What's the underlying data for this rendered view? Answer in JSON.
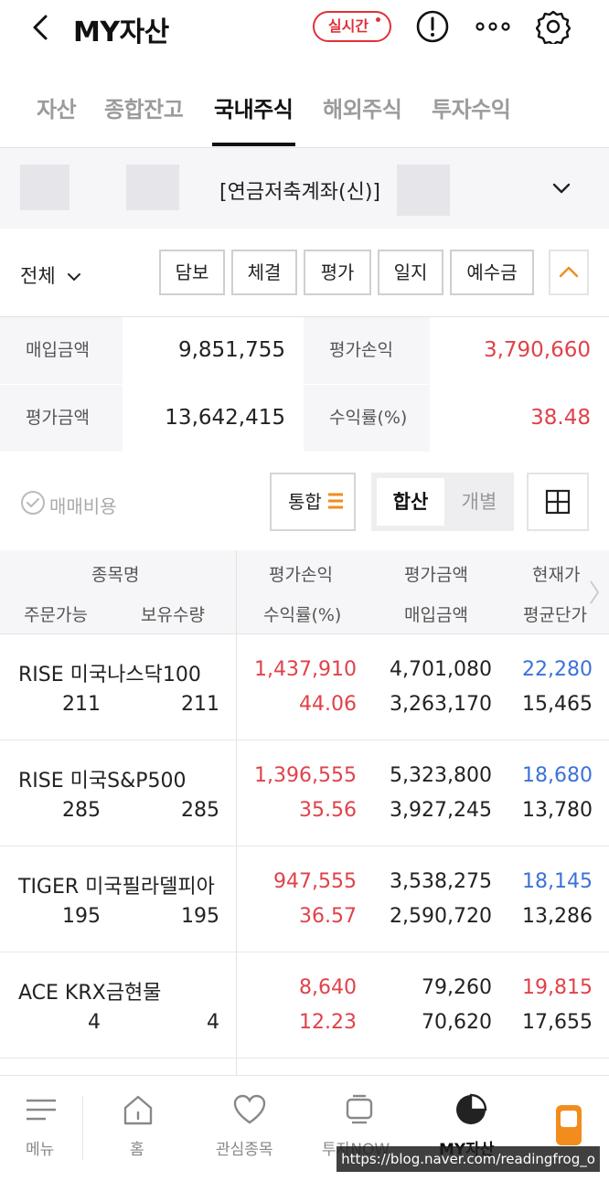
{
  "header": {
    "title": "MY자산",
    "realtime_badge": "실시간",
    "icons": [
      "back-icon",
      "alert-icon",
      "more-icon",
      "settings-icon"
    ]
  },
  "tabs": [
    {
      "label": "자산",
      "active": false
    },
    {
      "label": "종합잔고",
      "active": false
    },
    {
      "label": "국내주식",
      "active": true
    },
    {
      "label": "해외주식",
      "active": false
    },
    {
      "label": "투자수익",
      "active": false
    }
  ],
  "account": {
    "name": "[연금저축계좌(신)]"
  },
  "filter": {
    "scope": "전체",
    "buttons": [
      "담보",
      "체결",
      "평가",
      "일지",
      "예수금"
    ]
  },
  "summary": {
    "purchase_label": "매입금액",
    "purchase_value": "9,851,755",
    "pl_label": "평가손익",
    "pl_value": "3,790,660",
    "eval_label": "평가금액",
    "eval_value": "13,642,415",
    "return_label": "수익률(%)",
    "return_value": "38.48"
  },
  "options": {
    "fee_label": "매매비용",
    "integrated_label": "통합",
    "seg_on": "합산",
    "seg_off": "개별"
  },
  "table": {
    "headers": {
      "name": "종목명",
      "orderable": "주문가능",
      "holding": "보유수량",
      "pl": "평가손익",
      "return": "수익률(%)",
      "eval": "평가금액",
      "purchase": "매입금액",
      "price": "현재가",
      "avg": "평균단가"
    },
    "rows": [
      {
        "name": "RISE 미국나스닥100",
        "orderable": "211",
        "holding": "211",
        "pl": "1,437,910",
        "return": "44.06",
        "eval": "4,701,080",
        "purchase": "3,263,170",
        "price": "22,280",
        "avg": "15,465",
        "price_color": "#3b72d9"
      },
      {
        "name": "RISE 미국S&P500",
        "orderable": "285",
        "holding": "285",
        "pl": "1,396,555",
        "return": "35.56",
        "eval": "5,323,800",
        "purchase": "3,927,245",
        "price": "18,680",
        "avg": "13,780",
        "price_color": "#3b72d9"
      },
      {
        "name": "TIGER 미국필라델피아",
        "orderable": "195",
        "holding": "195",
        "pl": "947,555",
        "return": "36.57",
        "eval": "3,538,275",
        "purchase": "2,590,720",
        "price": "18,145",
        "avg": "13,286",
        "price_color": "#3b72d9"
      },
      {
        "name": "ACE KRX금현물",
        "orderable": "4",
        "holding": "4",
        "pl": "8,640",
        "return": "12.23",
        "eval": "79,260",
        "purchase": "70,620",
        "price": "19,815",
        "avg": "17,655",
        "price_color": "#e0424a"
      }
    ]
  },
  "bottom_nav": [
    {
      "label": "메뉴",
      "icon": "menu-icon"
    },
    {
      "label": "홈",
      "icon": "home-icon"
    },
    {
      "label": "관심종목",
      "icon": "heart-icon"
    },
    {
      "label": "투자NOW",
      "icon": "tv-icon"
    },
    {
      "label": "MY자산",
      "icon": "pie-chart-icon",
      "active": true
    },
    {
      "label": "",
      "icon": "phone-app-icon"
    }
  ],
  "watermark": "https://blog.naver.com/readingfrog_o"
}
